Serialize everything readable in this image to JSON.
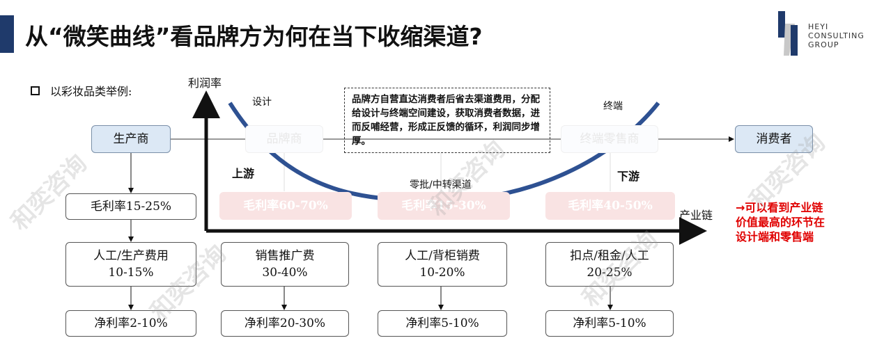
{
  "header": {
    "title": "从“微笑曲线”看品牌方为何在当下收缩渠道?",
    "logo_text": [
      "HEYI",
      "CONSULTING",
      "GROUP"
    ]
  },
  "intro": "以彩妆品类举例:",
  "axes": {
    "y_label": "利润率",
    "x_label": "产业链"
  },
  "curve_labels": {
    "design": "设计",
    "terminal": "终端",
    "middle": "零批/中转渠道",
    "upstream": "上游",
    "downstream": "下游"
  },
  "note": "品牌方自营直达消费者后省去渠道费用，分配给设计与终端空间建设，获取消费者数据，进而反哺经营，形成正反馈的循环，利润同步增厚。",
  "chain": {
    "producer": "生产商",
    "brand": "品牌商",
    "retailer": "终端零售商",
    "consumer": "消费者"
  },
  "columns": [
    {
      "gross": "毛利率15-25%",
      "cost": [
        "人工/生产费用",
        "10-15%"
      ],
      "net": "净利率2-10%"
    },
    {
      "gross": "毛利率60-70%",
      "cost": [
        "销售推广费",
        "30-40%"
      ],
      "net": "净利率20-30%"
    },
    {
      "gross": "毛利率15-30%",
      "cost": [
        "人工/背柜销费",
        "10-20%"
      ],
      "net": "净利率5-10%"
    },
    {
      "gross": "毛利率40-50%",
      "cost": [
        "扣点/租金/人工",
        "20-25%"
      ],
      "net": "净利率5-10%"
    }
  ],
  "conclusion": "→可以看到产业链价值最高的环节在设计端和零售端",
  "watermark": "和奕咨询",
  "colors": {
    "accent": "#1f3a6b",
    "curve": "#2e5192",
    "highlight": "#e00000",
    "header_box": "#dce8f5"
  }
}
